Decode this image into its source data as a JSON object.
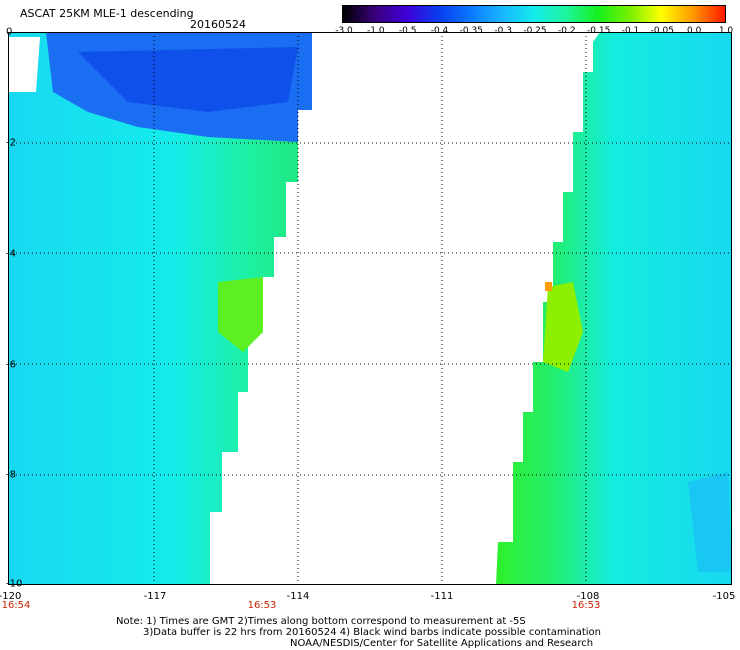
{
  "header": {
    "title": "ASCAT 25KM MLE-1 descending",
    "date": "20160524"
  },
  "colorbar": {
    "labels": [
      "-3.0",
      "-1.0",
      "-0.5",
      "-0.4",
      "-0.35",
      "-0.3",
      "-0.25",
      "-0.2",
      "-0.15",
      "-0.1",
      "-0.05",
      "0.0",
      "1.0"
    ],
    "colors": [
      "#000000",
      "#3a007a",
      "#3f00d8",
      "#0a3cf0",
      "#0a78ff",
      "#18b6ff",
      "#15ecea",
      "#1ef5a0",
      "#14f01e",
      "#78f000",
      "#ffff00",
      "#ff9800",
      "#ff1800"
    ]
  },
  "axes": {
    "y_ticks": [
      "0",
      "-2",
      "-4",
      "-6",
      "-8",
      "-10"
    ],
    "x_ticks": [
      "-120",
      "-117",
      "-114",
      "-111",
      "-108",
      "-105"
    ]
  },
  "times": [
    "16:54",
    "16:53",
    "16:53"
  ],
  "notes": {
    "line1": "Note: 1) Times are GMT 2)Times along bottom correspond to measurement at -5S",
    "line2": "3)Data buffer is 22 hrs from 20160524 4) Black wind barbs indicate possible contamination",
    "line3": "NOAA/NESDIS/Center for Satellite Applications and Research"
  }
}
